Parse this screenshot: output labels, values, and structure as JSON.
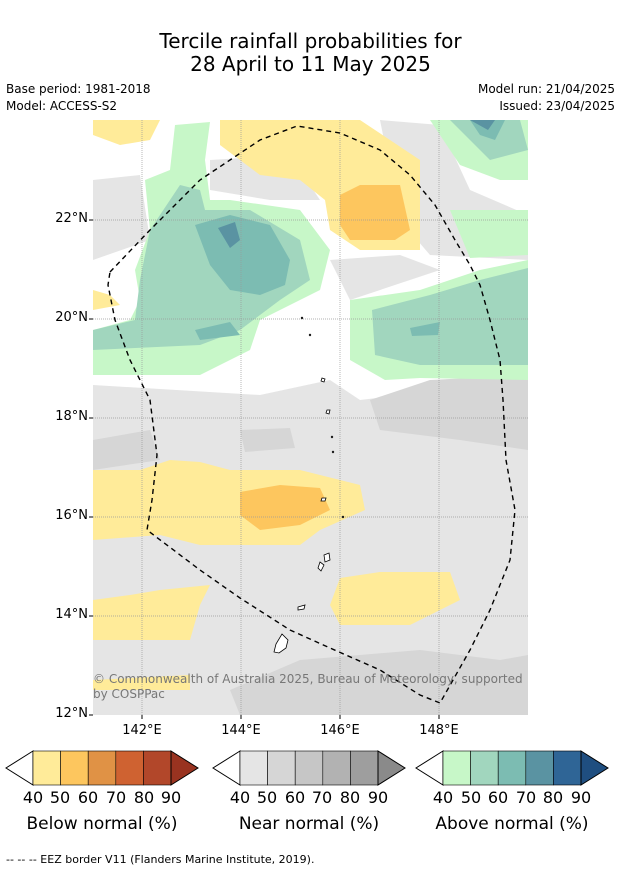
{
  "title_line1": "Tercile rainfall probabilities for",
  "title_line2": "28 April to 11 May 2025",
  "base_period": "Base period: 1981-2018",
  "model": "Model: ACCESS-S2",
  "model_run": "Model run: 21/04/2025",
  "issued": "Issued: 23/04/2025",
  "lat_labels": [
    "22°N",
    "20°N",
    "18°N",
    "16°N",
    "14°N",
    "12°N"
  ],
  "lon_labels": [
    "142°E",
    "144°E",
    "146°E",
    "148°E"
  ],
  "copyright": "© Commonwealth of Australia 2025, Bureau of Meteorology, supported by COSPPac",
  "colorbars": [
    {
      "label": "Below normal (%)",
      "ticks": [
        "40",
        "50",
        "60",
        "70",
        "80",
        "90"
      ],
      "colors": [
        "#ffeb99",
        "#fdc65e",
        "#e09245",
        "#cf6231",
        "#b2472a",
        "#993320"
      ]
    },
    {
      "label": "Near normal (%)",
      "ticks": [
        "40",
        "50",
        "60",
        "70",
        "80",
        "90"
      ],
      "colors": [
        "#e5e5e5",
        "#d6d6d6",
        "#c6c6c6",
        "#b2b2b2",
        "#9e9e9e",
        "#8a8a8a"
      ]
    },
    {
      "label": "Above normal (%)",
      "ticks": [
        "40",
        "50",
        "60",
        "70",
        "80",
        "90"
      ],
      "colors": [
        "#c7f7c8",
        "#a1d6be",
        "#7cbcb2",
        "#5a93a2",
        "#2f6596",
        "#1f4e80"
      ]
    }
  ],
  "footer": "--  --  -- EEZ border V11 (Flanders Marine Institute, 2019)."
}
